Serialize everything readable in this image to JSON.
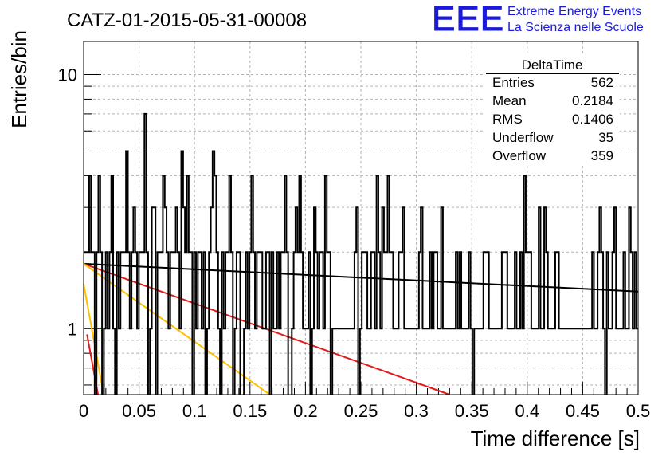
{
  "chart_data": {
    "type": "step-histogram",
    "title": "CATZ-01-2015-05-31-00008",
    "xlabel": "Time difference [s]",
    "ylabel": "Entries/bin",
    "xlim": [
      0,
      0.5
    ],
    "ylim": [
      0.55,
      13.5
    ],
    "yscale": "log",
    "grid": true,
    "x_ticks": [
      0,
      0.05,
      0.1,
      0.15,
      0.2,
      0.25,
      0.3,
      0.35,
      0.4,
      0.45,
      0.5
    ],
    "x_tick_labels": [
      "0",
      "0.05",
      "0.1",
      "0.15",
      "0.2",
      "0.25",
      "0.3",
      "0.35",
      "0.4",
      "0.45",
      "0.5"
    ],
    "y_ticks": [
      1,
      10
    ],
    "y_tick_labels": [
      "1",
      "10"
    ],
    "bin_width": 0.005,
    "histogram": {
      "name": "DeltaTime",
      "values": [
        2,
        2,
        2,
        4,
        2,
        2,
        0,
        2,
        4,
        2,
        0,
        1,
        2,
        1,
        2,
        4,
        1,
        0,
        2,
        1,
        2,
        2,
        2,
        5,
        2,
        1,
        2,
        3,
        2,
        1,
        2,
        2,
        2,
        7,
        2,
        0,
        1,
        3,
        3,
        0,
        2,
        2,
        2,
        4,
        3,
        2,
        1,
        2,
        2,
        2,
        3,
        2,
        1,
        5,
        3,
        2,
        4,
        2,
        2,
        0,
        2,
        1,
        2,
        2,
        1,
        2,
        0,
        1,
        2,
        3,
        5,
        4,
        2,
        1,
        0,
        2,
        1,
        2,
        2,
        4,
        2,
        0,
        1,
        2,
        2,
        0,
        0,
        1,
        2,
        1,
        2,
        4,
        2,
        1,
        2,
        2,
        2,
        1,
        1,
        2,
        2,
        0,
        2,
        1,
        1,
        2,
        1,
        2,
        2,
        4,
        2,
        0,
        0,
        1,
        2,
        3,
        2,
        4,
        2,
        1,
        1,
        1,
        2,
        0,
        1,
        3,
        2,
        1,
        2,
        2,
        1,
        4,
        2,
        2,
        0,
        1,
        1,
        1,
        1,
        1,
        1,
        1,
        1,
        1,
        1,
        1,
        1,
        2,
        3,
        0,
        1,
        2,
        2,
        2,
        1,
        1,
        2,
        2,
        1,
        4,
        2,
        1,
        3,
        2,
        2,
        4,
        2,
        2,
        1,
        1,
        1,
        2,
        2,
        3,
        1,
        1,
        1,
        1,
        1,
        1,
        1,
        1,
        2,
        3,
        1,
        1,
        1,
        1,
        2,
        1,
        2,
        2,
        1,
        1,
        3,
        1,
        1,
        1,
        1,
        1,
        1,
        1,
        2,
        1,
        2,
        1,
        1,
        1,
        1,
        2,
        1,
        0,
        1,
        1,
        1,
        1,
        1,
        2,
        2,
        2,
        1,
        1,
        1,
        1,
        1,
        1,
        1,
        2,
        2,
        2,
        1,
        1,
        1,
        1,
        2,
        1,
        1,
        2,
        1,
        4,
        2,
        2,
        2,
        1,
        1,
        1,
        1,
        3,
        1,
        1,
        3,
        2,
        1,
        1,
        1,
        1,
        2,
        2,
        1,
        1,
        1,
        1,
        1,
        1,
        1,
        1,
        1,
        1,
        1,
        1,
        1,
        1,
        1,
        1,
        1,
        1,
        2,
        1,
        1,
        2,
        3,
        2,
        1,
        0,
        2,
        1,
        1,
        2,
        3,
        1,
        1,
        1,
        1,
        2,
        1,
        1,
        3,
        2,
        1,
        2,
        1
      ]
    },
    "fit_lines": [
      {
        "color": "#000000",
        "points": [
          [
            0,
            1.8
          ],
          [
            0.5,
            1.4
          ]
        ]
      },
      {
        "color": "#e31a1c",
        "points": [
          [
            0,
            1.8
          ],
          [
            0.33,
            0.55
          ]
        ]
      },
      {
        "color": "#ffc000",
        "points": [
          [
            0,
            1.8
          ],
          [
            0.168,
            0.55
          ]
        ]
      },
      {
        "color": "#ffc000",
        "points": [
          [
            0,
            1.5
          ],
          [
            0.018,
            0.55
          ]
        ]
      },
      {
        "color": "#e31a1c",
        "points": [
          [
            0.003,
            0.95
          ],
          [
            0.013,
            0.55
          ]
        ]
      }
    ]
  },
  "stats_box": {
    "title": "DeltaTime",
    "rows": [
      {
        "label": "Entries",
        "value": "562"
      },
      {
        "label": "Mean",
        "value": "0.2184"
      },
      {
        "label": "RMS",
        "value": "0.1406"
      },
      {
        "label": "Underflow",
        "value": "35"
      },
      {
        "label": "Overflow",
        "value": "359"
      }
    ]
  },
  "logo": {
    "text": "EEE",
    "line1": "Extreme Energy Events",
    "line2": "La Scienza nelle Scuole",
    "color": "#1a1adc"
  }
}
